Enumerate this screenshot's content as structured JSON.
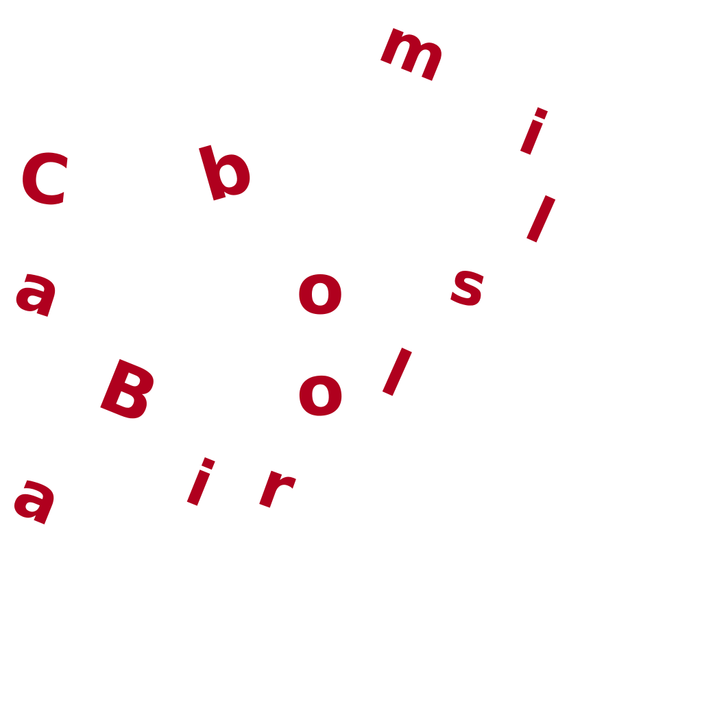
{
  "colors": {
    "background": "#ffffff",
    "text": "#b0001e"
  },
  "letters": {
    "m": "m",
    "i1": "i",
    "C": "C",
    "b": "b",
    "l1": "l",
    "a1": "a",
    "o1": "o",
    "s": "s",
    "l2": "l",
    "B": "B",
    "o2": "o",
    "i2": "i",
    "r": "r",
    "a2": "a"
  }
}
